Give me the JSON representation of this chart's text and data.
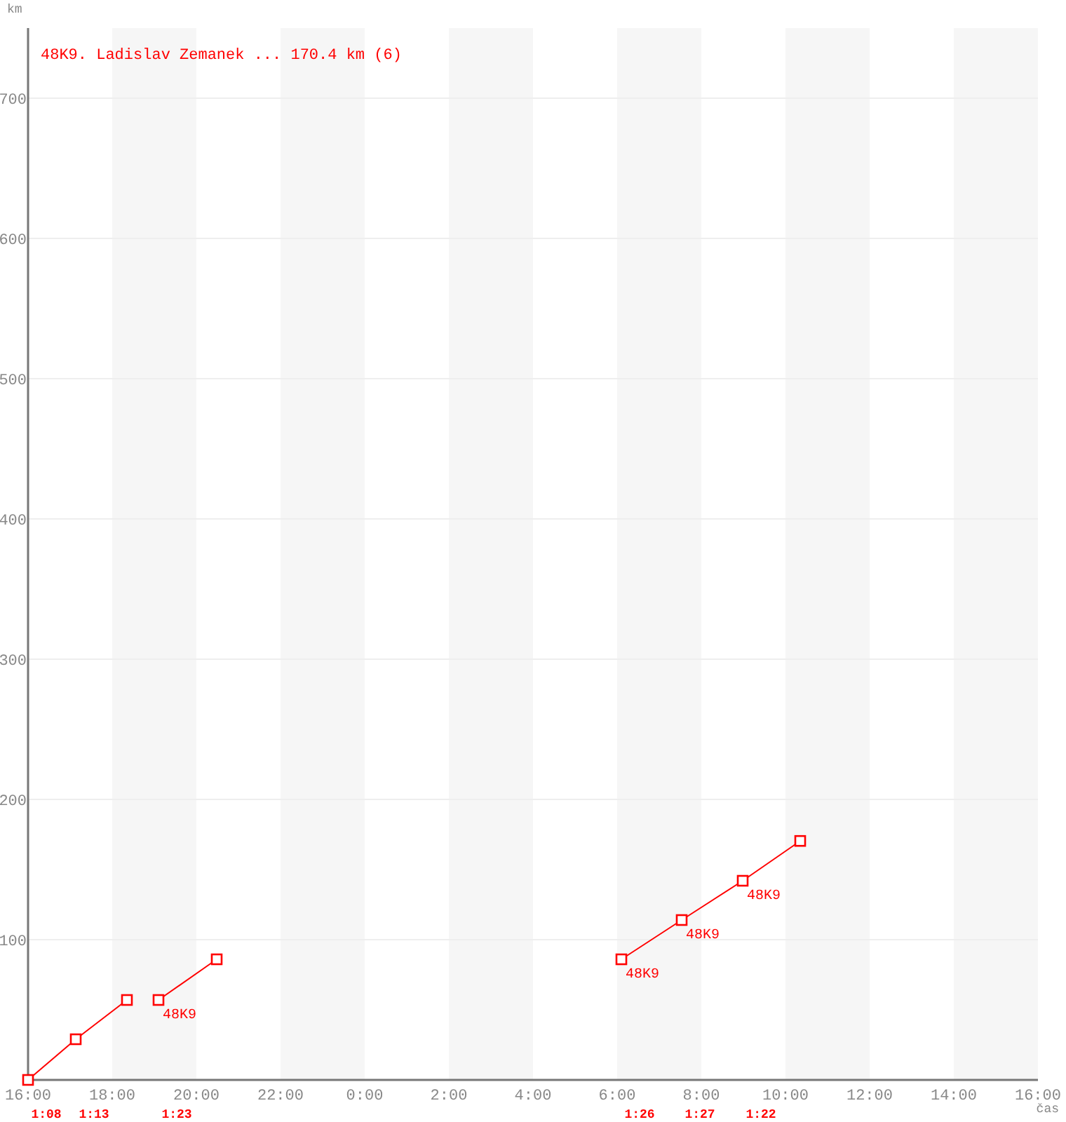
{
  "chart_data": {
    "type": "line",
    "title": "48K9. Ladislav Zemanek ... 170.4 km (6)",
    "ylabel": "km",
    "xlabel": "čas",
    "series": [
      {
        "color": "#ff0000",
        "x": [
          "2000-01-01T16:00",
          "2000-01-01T17:08",
          "2000-01-01T18:21"
        ],
        "values": [
          0,
          29,
          57
        ]
      },
      {
        "color": "#ff0000",
        "x": [
          "2000-01-01T19:06",
          "2000-01-01T20:29"
        ],
        "values": [
          57,
          86
        ]
      },
      {
        "color": "#ff0000",
        "x": [
          "2000-01-02T06:06",
          "2000-01-02T07:32",
          "2000-01-02T08:59",
          "2000-01-02T10:21"
        ],
        "values": [
          86,
          114,
          142,
          170.4
        ]
      }
    ],
    "xlim": [
      "2000-01-01T16:00",
      "2000-01-02T16:00"
    ],
    "xticks": [
      {
        "value": "2000-01-01T16:00",
        "label": "16:00"
      },
      {
        "value": "2000-01-01T18:00",
        "label": "18:00"
      },
      {
        "value": "2000-01-01T20:00",
        "label": "20:00"
      },
      {
        "value": "2000-01-01T22:00",
        "label": "22:00"
      },
      {
        "value": "2000-01-02T00:00",
        "label": "0:00"
      },
      {
        "value": "2000-01-02T02:00",
        "label": "2:00"
      },
      {
        "value": "2000-01-02T04:00",
        "label": "4:00"
      },
      {
        "value": "2000-01-02T06:00",
        "label": "6:00"
      },
      {
        "value": "2000-01-02T08:00",
        "label": "8:00"
      },
      {
        "value": "2000-01-02T10:00",
        "label": "10:00"
      },
      {
        "value": "2000-01-02T12:00",
        "label": "12:00"
      },
      {
        "value": "2000-01-02T14:00",
        "label": "14:00"
      },
      {
        "value": "2000-01-02T16:00",
        "label": "16:00"
      }
    ],
    "ylim": [
      0,
      750
    ],
    "yticks": [
      100,
      200,
      300,
      400,
      500,
      600,
      700
    ],
    "grid": "y",
    "marker": "square",
    "line_style": "solid",
    "bands": [
      {
        "axis": "x",
        "from": "2000-01-01T18:00",
        "to": "2000-01-01T20:00",
        "color": "#f6f6f6"
      },
      {
        "axis": "x",
        "from": "2000-01-01T22:00",
        "to": "2000-01-02T00:00",
        "color": "#f6f6f6"
      },
      {
        "axis": "x",
        "from": "2000-01-02T02:00",
        "to": "2000-01-02T04:00",
        "color": "#f6f6f6"
      },
      {
        "axis": "x",
        "from": "2000-01-02T06:00",
        "to": "2000-01-02T08:00",
        "color": "#f6f6f6"
      },
      {
        "axis": "x",
        "from": "2000-01-02T10:00",
        "to": "2000-01-02T12:00",
        "color": "#f6f6f6"
      },
      {
        "axis": "x",
        "from": "2000-01-02T14:00",
        "to": "2000-01-02T16:00",
        "color": "#f6f6f6"
      }
    ],
    "annotations": [
      "1:08",
      "1:13",
      "1:23",
      "1:26",
      "1:27",
      "1:22",
      {
        "text": "48K9",
        "x": "2000-01-01T19:06",
        "y": 57
      },
      {
        "text": "48K9",
        "x": "2000-01-02T06:06",
        "y": 86
      },
      {
        "text": "48K9",
        "x": "2000-01-02T07:32",
        "y": 114
      },
      {
        "text": "48K9",
        "x": "2000-01-02T08:59",
        "y": 142
      }
    ]
  }
}
